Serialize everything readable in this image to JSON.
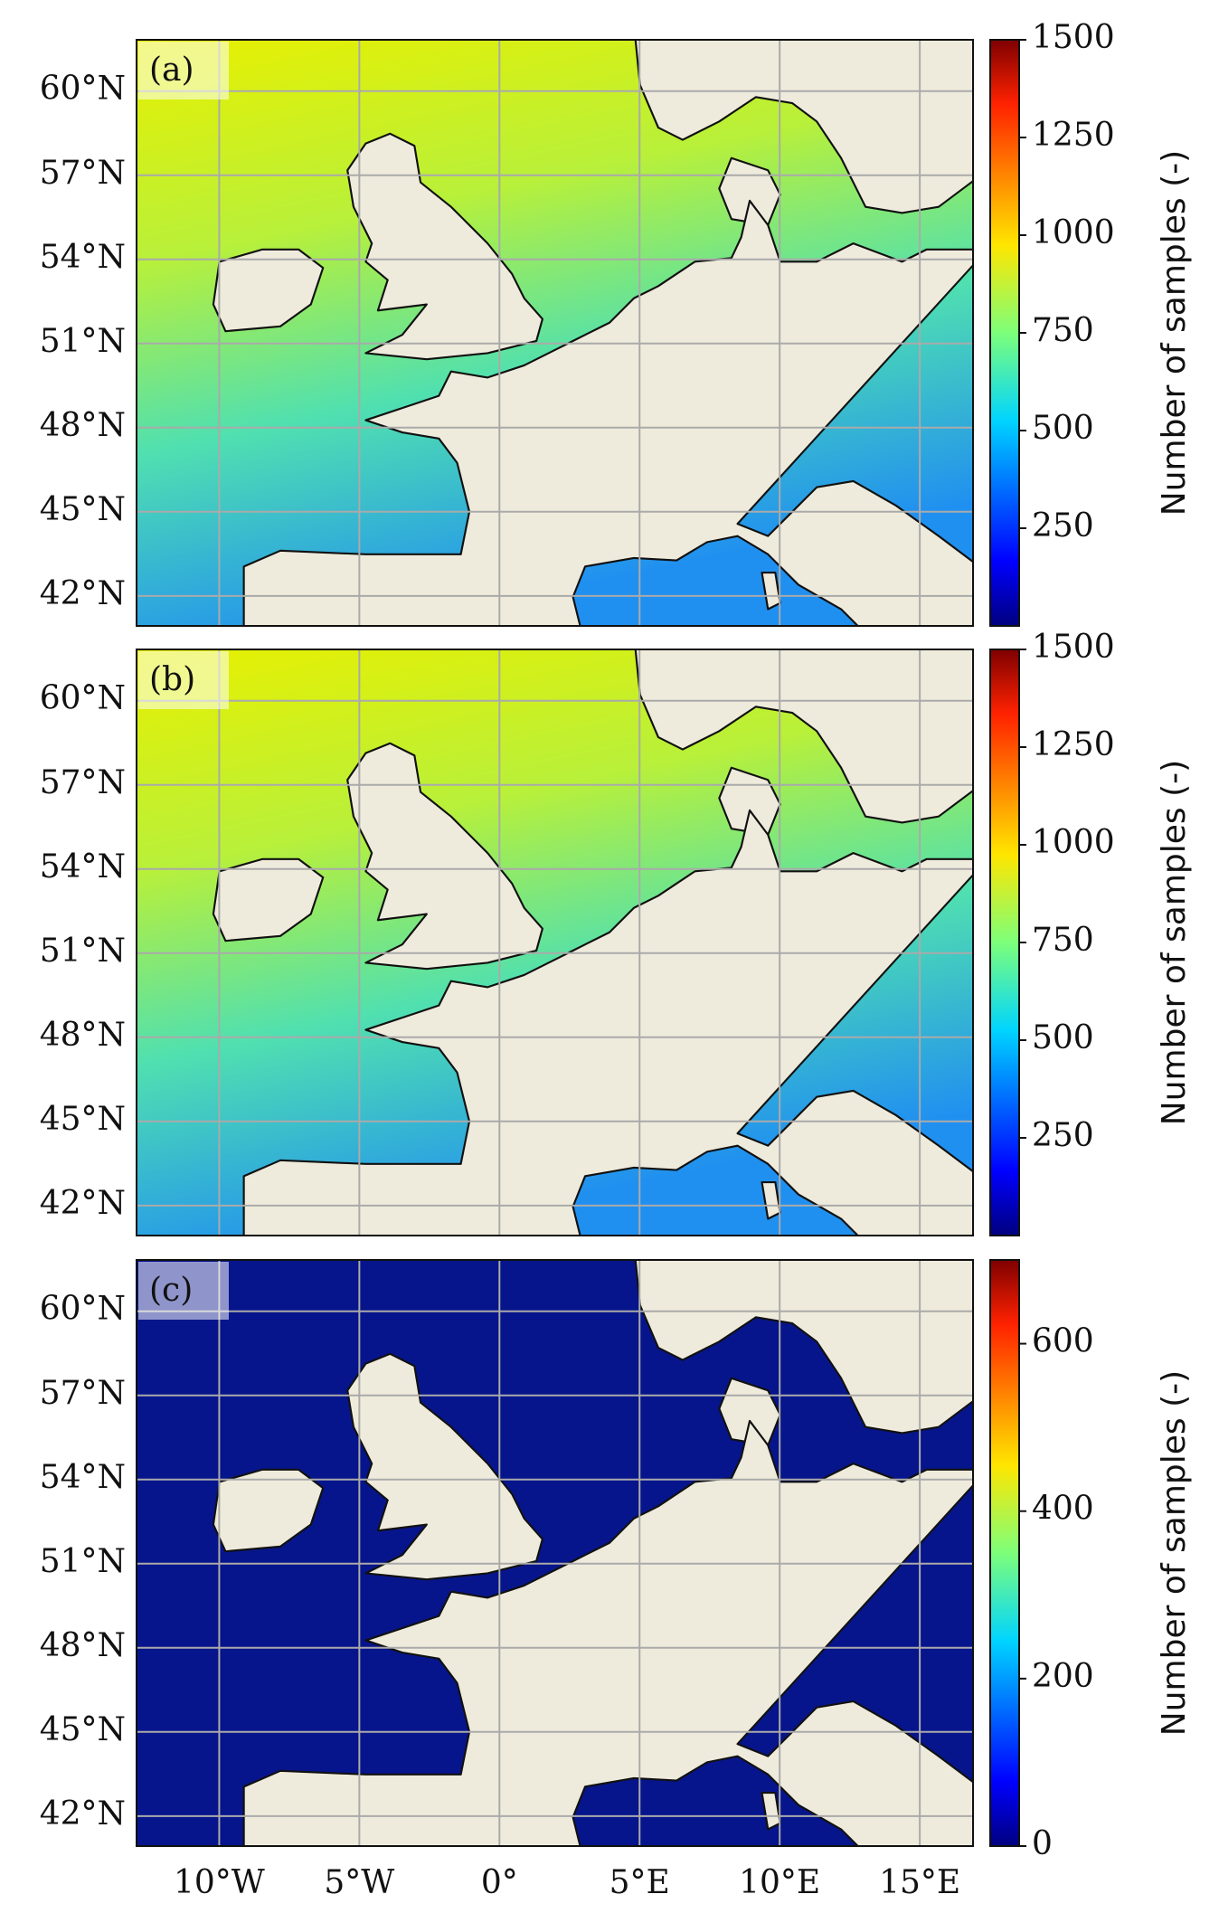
{
  "lonlim": [
    -12.95,
    16.9
  ],
  "latlim": [
    40.93,
    61.83
  ],
  "lat_ticks": [
    {
      "value": 42,
      "label": "42°N"
    },
    {
      "value": 45,
      "label": "45°N"
    },
    {
      "value": 48,
      "label": "48°N"
    },
    {
      "value": 51,
      "label": "51°N"
    },
    {
      "value": 54,
      "label": "54°N"
    },
    {
      "value": 57,
      "label": "57°N"
    },
    {
      "value": 60,
      "label": "60°N"
    }
  ],
  "lon_ticks": [
    {
      "value": -10,
      "label": "10°W"
    },
    {
      "value": -5,
      "label": "5°W"
    },
    {
      "value": 0,
      "label": "0°"
    },
    {
      "value": 5,
      "label": "5°E"
    },
    {
      "value": 10,
      "label": "10°E"
    },
    {
      "value": 15,
      "label": "15°E"
    }
  ],
  "panels": [
    {
      "label": "(a)",
      "colorbar": {
        "label": "Number of samples (-)",
        "lim": [
          0,
          1500
        ],
        "ticks": [
          250,
          500,
          750,
          1000,
          1250,
          1500
        ]
      }
    },
    {
      "label": "(b)",
      "colorbar": {
        "label": "Number of samples (-)",
        "lim": [
          0,
          1500
        ],
        "ticks": [
          250,
          500,
          750,
          1000,
          1250,
          1500
        ]
      }
    },
    {
      "label": "(c)",
      "colorbar": {
        "label": "Number of samples (-)",
        "lim": [
          0,
          700
        ],
        "ticks": [
          0,
          200,
          400,
          600
        ]
      }
    }
  ]
}
